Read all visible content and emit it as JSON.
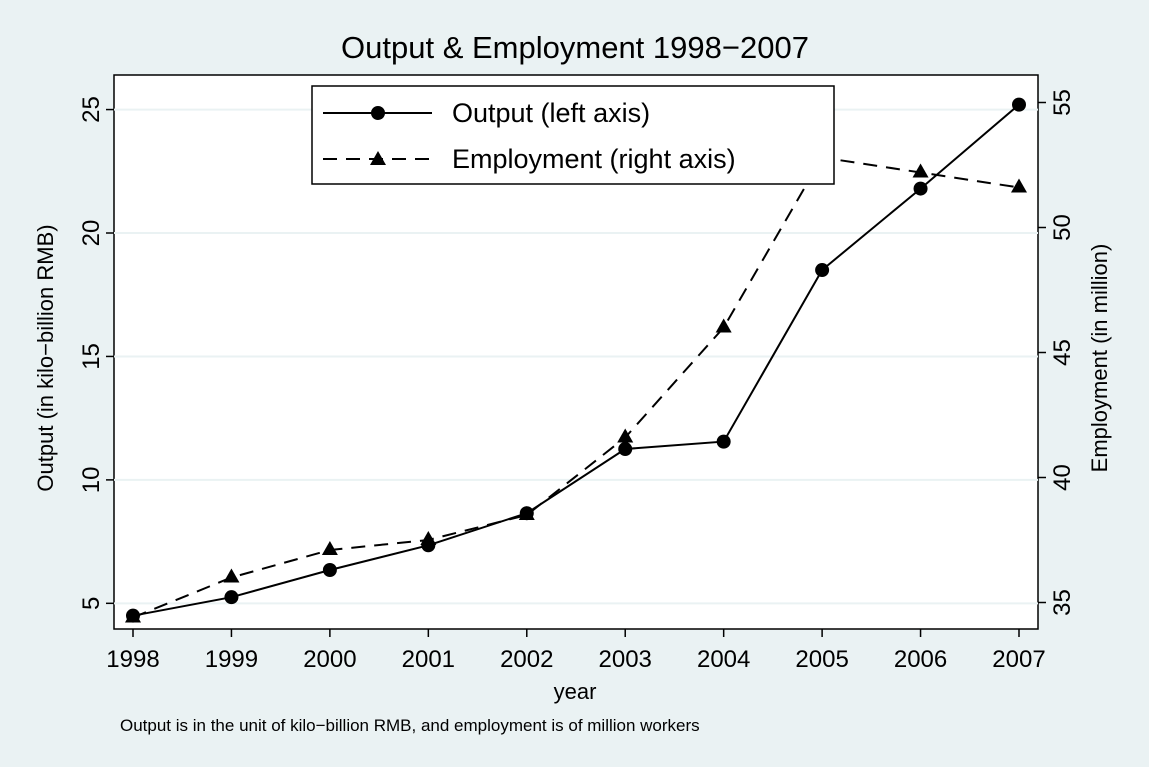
{
  "chart_data": {
    "type": "line",
    "title": "Output & Employment 1998−2007",
    "xlabel": "year",
    "ylabel_left": "Output (in kilo−billion RMB)",
    "ylabel_right": "Employment (in million)",
    "note": "Output is in the unit of kilo−billion RMB, and employment is of million workers",
    "x": [
      1998,
      1999,
      2000,
      2001,
      2002,
      2003,
      2004,
      2005,
      2006,
      2007
    ],
    "x_ticks": [
      "1998",
      "1999",
      "2000",
      "2001",
      "2002",
      "2003",
      "2004",
      "2005",
      "2006",
      "2007"
    ],
    "y_left_ticks": [
      "5",
      "10",
      "15",
      "20",
      "25"
    ],
    "y_left_tick_values": [
      5,
      10,
      15,
      20,
      25
    ],
    "y_right_ticks": [
      "35",
      "40",
      "45",
      "50",
      "55"
    ],
    "y_right_tick_values": [
      35,
      40,
      45,
      50,
      55
    ],
    "y_left_range": [
      3.96,
      26.4
    ],
    "y_right_range": [
      33.94,
      56.1
    ],
    "series": [
      {
        "name": "Output (left axis)",
        "axis": "left",
        "line_style": "solid",
        "marker": "circle",
        "values": [
          4.5,
          5.25,
          6.35,
          7.35,
          8.65,
          11.25,
          11.55,
          18.5,
          21.8,
          25.2
        ]
      },
      {
        "name": "Employment (right axis)",
        "axis": "right",
        "line_style": "dashed",
        "marker": "triangle",
        "values": [
          34.4,
          36.0,
          37.1,
          37.5,
          38.5,
          41.6,
          46.0,
          52.8,
          52.2,
          51.6
        ]
      }
    ],
    "grid": "horizontal",
    "legend_position": "top-center",
    "colors": {
      "background": "#eaf2f3",
      "plot_area": "#ffffff",
      "grid": "#eaf2f3",
      "series": "#000000"
    }
  }
}
